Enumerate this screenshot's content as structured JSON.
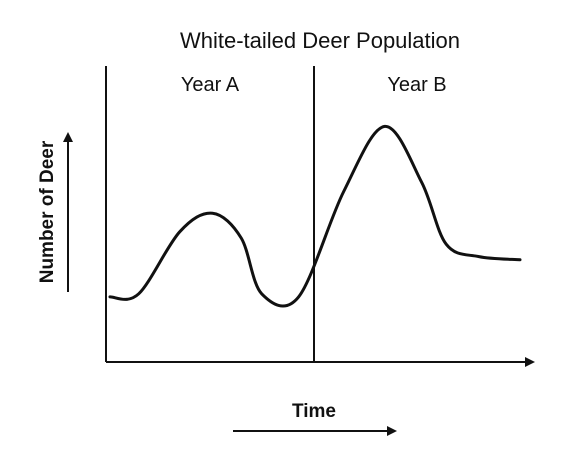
{
  "chart_data": {
    "type": "line",
    "title": "White-tailed Deer Population",
    "xlabel": "Time",
    "ylabel": "Number of Deer",
    "panels": [
      "Year A",
      "Year B"
    ],
    "grid": false,
    "numeric_ticks": false,
    "series": [
      {
        "points": [
          [
            0.0,
            0.21
          ],
          [
            0.07,
            0.22
          ],
          [
            0.17,
            0.42
          ],
          [
            0.25,
            0.48
          ],
          [
            0.32,
            0.4
          ],
          [
            0.37,
            0.22
          ],
          [
            0.46,
            0.21
          ],
          [
            0.57,
            0.55
          ],
          [
            0.67,
            0.76
          ],
          [
            0.76,
            0.58
          ],
          [
            0.82,
            0.38
          ],
          [
            0.9,
            0.34
          ],
          [
            1.0,
            0.33
          ]
        ]
      }
    ]
  }
}
